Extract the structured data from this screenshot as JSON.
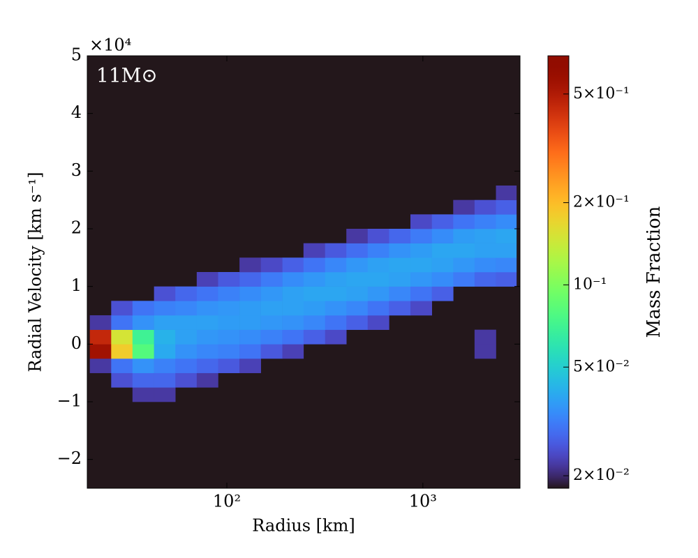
{
  "chart_data": {
    "type": "heatmap",
    "x_label": "Radius [km]",
    "y_label": "Radial Velocity [km s⁻¹]",
    "annotation": "11M⊙",
    "y_offset_text": "×10⁴",
    "colorbar_label": "Mass Fraction",
    "colormap": "turbo",
    "x_scale": "log",
    "color_scale": "log",
    "xlim": [
      19.4,
      3130
    ],
    "ylim": [
      -25000,
      50000
    ],
    "clim": [
      0.018,
      0.69
    ],
    "xticks": [
      {
        "value": 100,
        "label": "10²"
      },
      {
        "value": 1000,
        "label": "10³"
      }
    ],
    "yticks": [
      {
        "value": -20000,
        "label": "−2"
      },
      {
        "value": -10000,
        "label": "−1"
      },
      {
        "value": 0,
        "label": "0"
      },
      {
        "value": 10000,
        "label": "1"
      },
      {
        "value": 20000,
        "label": "2"
      },
      {
        "value": 30000,
        "label": "3"
      },
      {
        "value": 40000,
        "label": "4"
      },
      {
        "value": 50000,
        "label": "5"
      }
    ],
    "cticks": [
      {
        "value": 0.02,
        "label": "2×10⁻²"
      },
      {
        "value": 0.05,
        "label": "5×10⁻²"
      },
      {
        "value": 0.1,
        "label": "10⁻¹"
      },
      {
        "value": 0.2,
        "label": "2×10⁻¹"
      },
      {
        "value": 0.5,
        "label": "5×10⁻¹"
      }
    ],
    "xbins": [
      20,
      25.7,
      33.0,
      42.5,
      54.6,
      70.2,
      90.2,
      116,
      149,
      192,
      246,
      317,
      407,
      523,
      672,
      864,
      1111,
      1428,
      1835,
      2359,
      3000
    ],
    "ybins": [
      -10000,
      -7500,
      -5000,
      -2500,
      0,
      2500,
      5000,
      7500,
      10000,
      12500,
      15000,
      17500,
      20000,
      22500,
      25000,
      27500
    ],
    "z": [
      [
        null,
        null,
        0.022,
        0.022,
        null,
        null,
        null,
        null,
        null,
        null,
        null,
        null,
        null,
        null,
        null,
        null,
        null,
        null,
        null,
        null
      ],
      [
        null,
        0.025,
        0.028,
        0.028,
        0.025,
        0.022,
        null,
        null,
        null,
        null,
        null,
        null,
        null,
        null,
        null,
        null,
        null,
        null,
        null,
        null
      ],
      [
        0.022,
        0.03,
        0.035,
        0.032,
        0.03,
        0.028,
        0.026,
        0.023,
        null,
        null,
        null,
        null,
        null,
        null,
        null,
        null,
        null,
        null,
        null,
        null
      ],
      [
        0.55,
        0.18,
        0.08,
        0.04,
        0.035,
        0.033,
        0.032,
        0.03,
        0.026,
        0.023,
        null,
        null,
        null,
        null,
        null,
        null,
        null,
        null,
        0.022,
        null
      ],
      [
        0.45,
        0.15,
        0.07,
        0.042,
        0.038,
        0.036,
        0.035,
        0.034,
        0.032,
        0.03,
        0.027,
        0.024,
        null,
        null,
        null,
        null,
        null,
        null,
        0.022,
        null
      ],
      [
        0.022,
        0.03,
        0.035,
        0.038,
        0.038,
        0.038,
        0.037,
        0.037,
        0.036,
        0.035,
        0.033,
        0.03,
        0.027,
        0.024,
        null,
        null,
        null,
        null,
        null,
        null
      ],
      [
        null,
        0.025,
        0.03,
        0.032,
        0.033,
        0.035,
        0.036,
        0.037,
        0.038,
        0.038,
        0.037,
        0.035,
        0.033,
        0.03,
        0.027,
        0.024,
        null,
        null,
        null,
        null
      ],
      [
        null,
        null,
        null,
        0.025,
        0.028,
        0.03,
        0.032,
        0.034,
        0.036,
        0.038,
        0.039,
        0.039,
        0.038,
        0.036,
        0.033,
        0.03,
        0.027,
        null,
        null,
        null
      ],
      [
        null,
        null,
        null,
        null,
        null,
        0.023,
        0.026,
        0.028,
        0.031,
        0.034,
        0.036,
        0.038,
        0.039,
        0.039,
        0.038,
        0.036,
        0.034,
        0.031,
        0.028,
        0.027
      ],
      [
        null,
        null,
        null,
        null,
        null,
        null,
        null,
        0.022,
        0.024,
        0.027,
        0.03,
        0.033,
        0.036,
        0.038,
        0.039,
        0.039,
        0.038,
        0.036,
        0.034,
        0.033
      ],
      [
        null,
        null,
        null,
        null,
        null,
        null,
        null,
        null,
        null,
        null,
        0.023,
        0.026,
        0.029,
        0.032,
        0.035,
        0.037,
        0.039,
        0.039,
        0.038,
        0.038
      ],
      [
        null,
        null,
        null,
        null,
        null,
        null,
        null,
        null,
        null,
        null,
        null,
        null,
        0.022,
        0.025,
        0.028,
        0.031,
        0.034,
        0.037,
        0.038,
        0.039
      ],
      [
        null,
        null,
        null,
        null,
        null,
        null,
        null,
        null,
        null,
        null,
        null,
        null,
        null,
        null,
        null,
        0.024,
        0.027,
        0.03,
        0.032,
        0.034
      ],
      [
        null,
        null,
        null,
        null,
        null,
        null,
        null,
        null,
        null,
        null,
        null,
        null,
        null,
        null,
        null,
        null,
        null,
        0.022,
        0.025,
        0.027
      ],
      [
        null,
        null,
        null,
        null,
        null,
        null,
        null,
        null,
        null,
        null,
        null,
        null,
        null,
        null,
        null,
        null,
        null,
        null,
        null,
        0.022
      ]
    ]
  }
}
